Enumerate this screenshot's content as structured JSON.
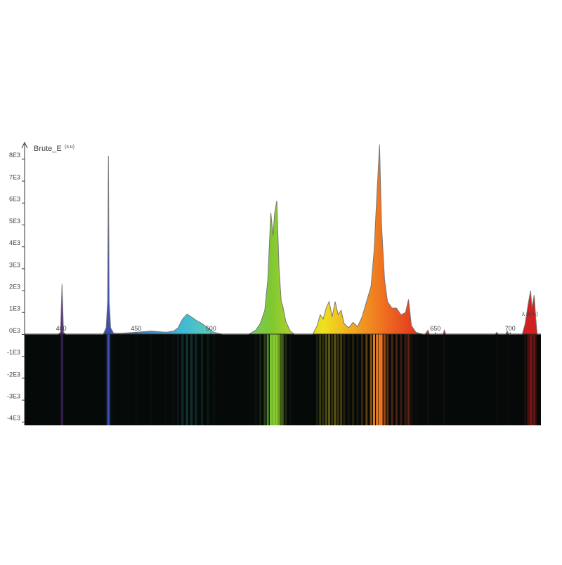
{
  "chart_data": {
    "type": "area",
    "y_label": "Brute_E",
    "y_unit": "(s.u)",
    "x_label": "λ (nm)",
    "xlim": [
      375.5,
      720.5
    ],
    "ylim": [
      -4150,
      8700
    ],
    "xticks": [
      400,
      450,
      500,
      650,
      700
    ],
    "yticks": [
      {
        "value": 8000,
        "label": "8E3"
      },
      {
        "value": 7000,
        "label": "7E3"
      },
      {
        "value": 6000,
        "label": "6E3"
      },
      {
        "value": 5000,
        "label": "5E3"
      },
      {
        "value": 4000,
        "label": "4E3"
      },
      {
        "value": 3000,
        "label": "3E3"
      },
      {
        "value": 2000,
        "label": "2E3"
      },
      {
        "value": 1000,
        "label": "1E3"
      },
      {
        "value": 0,
        "label": "0E3"
      },
      {
        "value": -1000,
        "label": "-1E3"
      },
      {
        "value": -2000,
        "label": "-2E3"
      },
      {
        "value": -3000,
        "label": "-3E3"
      },
      {
        "value": -4000,
        "label": "-4E3"
      }
    ],
    "line_color": "#777777",
    "spectrum_colors": [
      {
        "value": 400,
        "color": "#5a2a8a"
      },
      {
        "value": 432,
        "color": "#3b4fb0"
      },
      {
        "value": 480,
        "color": "#3fb8d8"
      },
      {
        "value": 505,
        "color": "#5fd0b0"
      },
      {
        "value": 540,
        "color": "#7fc832"
      },
      {
        "value": 575,
        "color": "#f0e020"
      },
      {
        "value": 598,
        "color": "#f0a020"
      },
      {
        "value": 615,
        "color": "#f07020"
      },
      {
        "value": 640,
        "color": "#e03020"
      },
      {
        "value": 700,
        "color": "#d02020"
      }
    ],
    "x": [
      375.5,
      398,
      399.5,
      400.5,
      401.5,
      403,
      428,
      430,
      431,
      431.5,
      432,
      433,
      435,
      440,
      450,
      460,
      470,
      475,
      478,
      481,
      484,
      487,
      490,
      494,
      498,
      502,
      508,
      525,
      530,
      533,
      536,
      538,
      540,
      541.5,
      542.5,
      544,
      545.5,
      547,
      548,
      550,
      553,
      556,
      568,
      571,
      573,
      575,
      577,
      579,
      581,
      583,
      585,
      587,
      589,
      592,
      595,
      598,
      601,
      604,
      607,
      609,
      611,
      612.7,
      614,
      616,
      618,
      621,
      624,
      627,
      630,
      632,
      634,
      637,
      642,
      643,
      645,
      646,
      655,
      656,
      657,
      690,
      691,
      692,
      697,
      698,
      699,
      708,
      710,
      712,
      713.6,
      714.5,
      716,
      717,
      718,
      720.5
    ],
    "values": [
      0,
      0,
      100,
      2300,
      100,
      0,
      0,
      300,
      1500,
      8150,
      1500,
      300,
      50,
      50,
      100,
      150,
      100,
      150,
      300,
      700,
      930,
      800,
      650,
      500,
      300,
      100,
      0,
      0,
      200,
      500,
      1100,
      2500,
      5560,
      4500,
      5500,
      6100,
      3000,
      1500,
      1300,
      600,
      150,
      0,
      0,
      400,
      900,
      700,
      1200,
      1500,
      800,
      1500,
      900,
      1100,
      500,
      300,
      550,
      350,
      800,
      1500,
      2200,
      3800,
      6500,
      8670,
      5000,
      2500,
      1500,
      1200,
      1200,
      900,
      1000,
      1600,
      400,
      100,
      0,
      0,
      200,
      0,
      0,
      200,
      0,
      0,
      100,
      0,
      0,
      150,
      0,
      0,
      500,
      1400,
      2000,
      1200,
      1800,
      800,
      0,
      0
    ]
  }
}
